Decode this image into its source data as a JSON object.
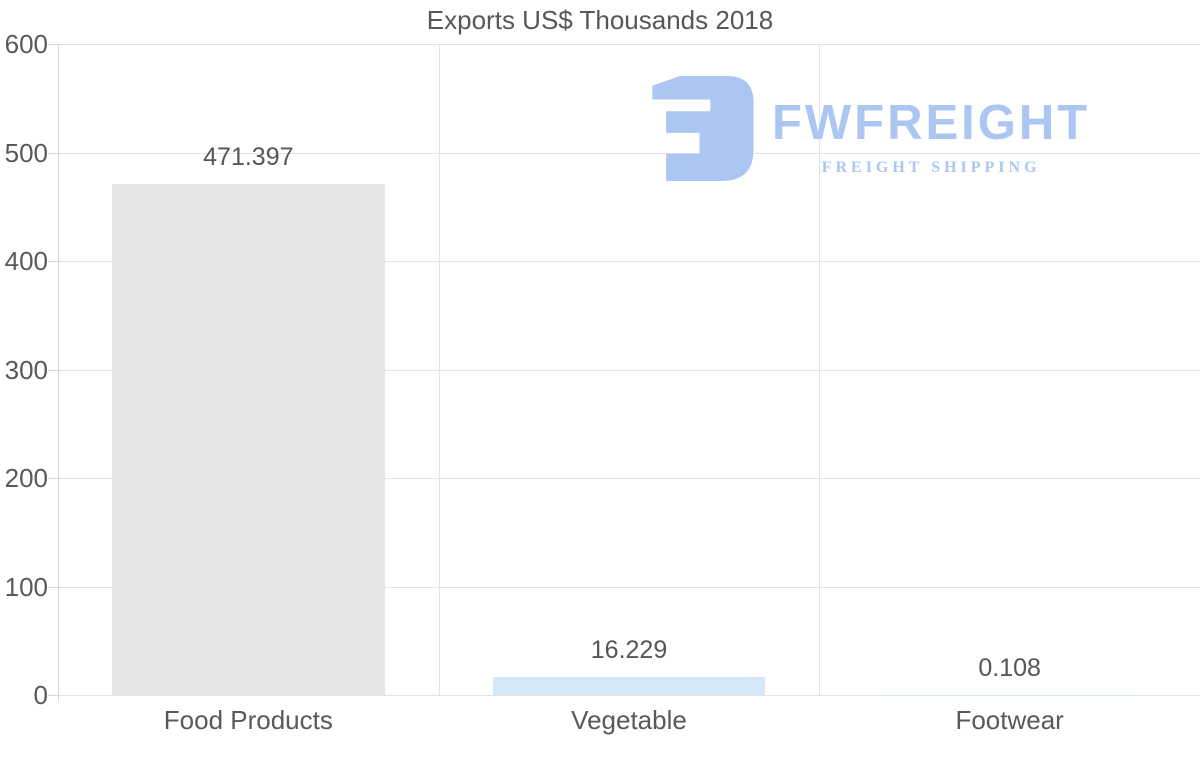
{
  "title": "Exports US$ Thousands 2018",
  "logo": {
    "brand": "FWFREIGHT",
    "tagline": "FREIGHT SHIPPING",
    "color": "#abc6f0"
  },
  "chart_data": {
    "type": "bar",
    "title": "Exports US$ Thousands 2018",
    "categories": [
      "Food Products",
      "Vegetable",
      "Footwear"
    ],
    "values": [
      471.397,
      16.229,
      0.108
    ],
    "value_labels": [
      "471.397",
      "16.229",
      "0.108"
    ],
    "bar_colors": [
      "#e6e6e6",
      "#d6e7f7",
      "#d6e7f7"
    ],
    "xlabel": "",
    "ylabel": "",
    "ylim": [
      0,
      600
    ],
    "yticks": [
      0,
      100,
      200,
      300,
      400,
      500,
      600
    ],
    "grid": true,
    "legend": false
  },
  "colors": {
    "gridline": "#e3e3e3",
    "axis": "#d4d4d4",
    "tick_text": "#58595b",
    "title_text": "#575757",
    "value_text": "#565656"
  }
}
